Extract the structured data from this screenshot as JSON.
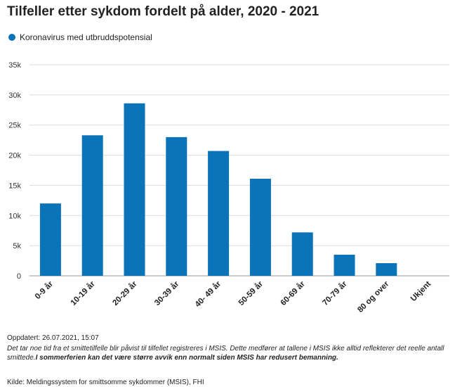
{
  "chart_data": {
    "type": "bar",
    "title": "Tilfeller etter sykdom fordelt på alder, 2020 - 2021",
    "series": [
      {
        "name": "Koronavirus med utbruddspotensial",
        "color": "#0b73b8",
        "values": [
          12000,
          23300,
          28600,
          23000,
          20700,
          16100,
          7200,
          3500,
          2100,
          0
        ]
      }
    ],
    "categories": [
      "0-9 år",
      "10-19 år",
      "20-29 år",
      "30-39 år",
      "40- 49 år",
      "50-59 år",
      "60-69 år",
      "70-79 år",
      "80 og over",
      "Ukjent"
    ],
    "ylim": [
      0,
      35000
    ],
    "yticks": [
      0,
      5000,
      10000,
      15000,
      20000,
      25000,
      30000,
      35000
    ],
    "ytick_labels": [
      "0",
      "5k",
      "10k",
      "15k",
      "20k",
      "25k",
      "30k",
      "35k"
    ],
    "xlabel": "",
    "ylabel": "",
    "grid": true,
    "legend_position": "top-left"
  },
  "footer": {
    "updated": "Oppdatert: 26.07.2021, 15:07",
    "note": "Det tar noe tid fra et smittetilfelle blir påvist til tilfellet registreres i MSIS. Dette medfører at tallene i MSIS ikke alltid reflekterer det reelle antall smittede.",
    "note_bold": "I sommerferien kan det være større avvik enn normalt siden MSIS har redusert bemanning.",
    "source": "Kilde: Meldingssystem for smittsomme sykdommer (MSIS), FHI"
  }
}
